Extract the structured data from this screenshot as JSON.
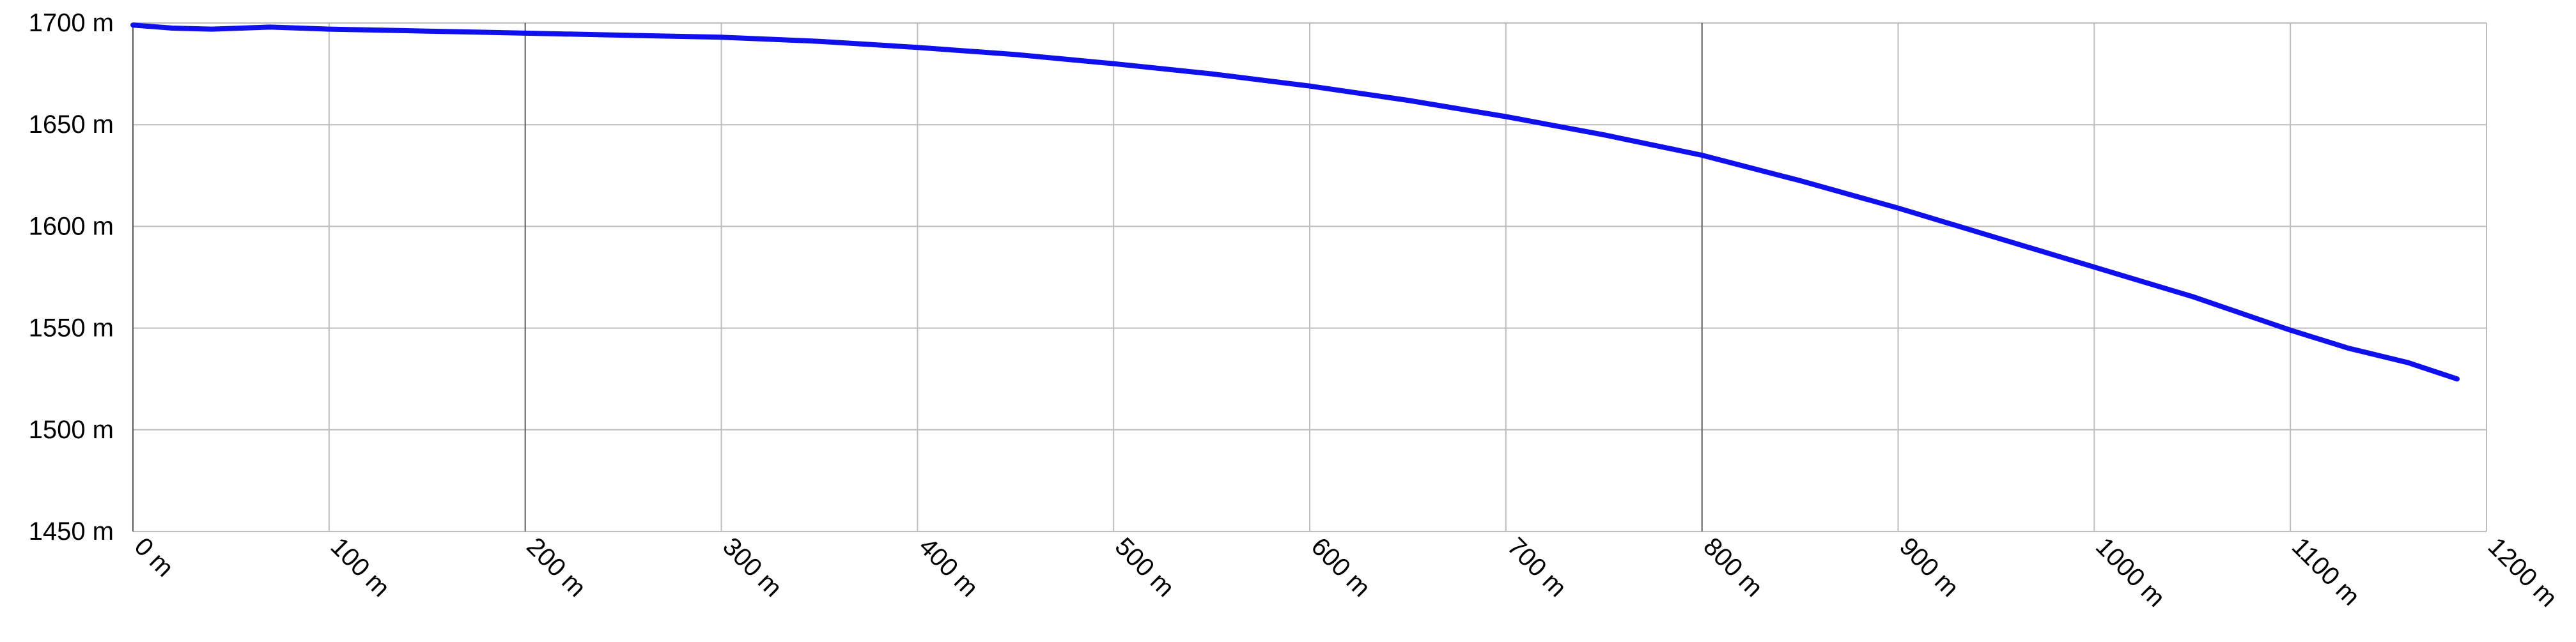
{
  "chart_data": {
    "type": "line",
    "title": "",
    "xlabel": "",
    "ylabel": "",
    "xlim": [
      0,
      1200
    ],
    "ylim": [
      1450,
      1700
    ],
    "grid": true,
    "x_ticks": [
      0,
      100,
      200,
      300,
      400,
      500,
      600,
      700,
      800,
      900,
      1000,
      1100,
      1200
    ],
    "x_tick_labels": [
      "0 m",
      "100 m",
      "200 m",
      "300 m",
      "400 m",
      "500 m",
      "600 m",
      "700 m",
      "800 m",
      "900 m",
      "1000 m",
      "1100 m",
      "1200 m"
    ],
    "y_ticks": [
      1450,
      1500,
      1550,
      1600,
      1650,
      1700
    ],
    "y_tick_labels": [
      "1450 m",
      "1500 m",
      "1550 m",
      "1600 m",
      "1650 m",
      "1700 m"
    ],
    "major_x_gridlines": [
      200,
      800
    ],
    "line_color": "#1010ee",
    "series": [
      {
        "x": [
          0,
          20,
          40,
          70,
          100,
          150,
          200,
          250,
          300,
          350,
          400,
          450,
          500,
          550,
          600,
          650,
          700,
          750,
          800,
          850,
          900,
          950,
          1000,
          1050,
          1100,
          1130,
          1160,
          1185
        ],
        "y": [
          1699,
          1697.5,
          1697,
          1698,
          1697,
          1696,
          1695,
          1694,
          1693,
          1691,
          1688,
          1684.5,
          1680,
          1675,
          1669,
          1662,
          1654,
          1645,
          1635,
          1622.5,
          1609,
          1594.5,
          1580,
          1565.5,
          1549,
          1540,
          1533,
          1525
        ]
      }
    ]
  }
}
